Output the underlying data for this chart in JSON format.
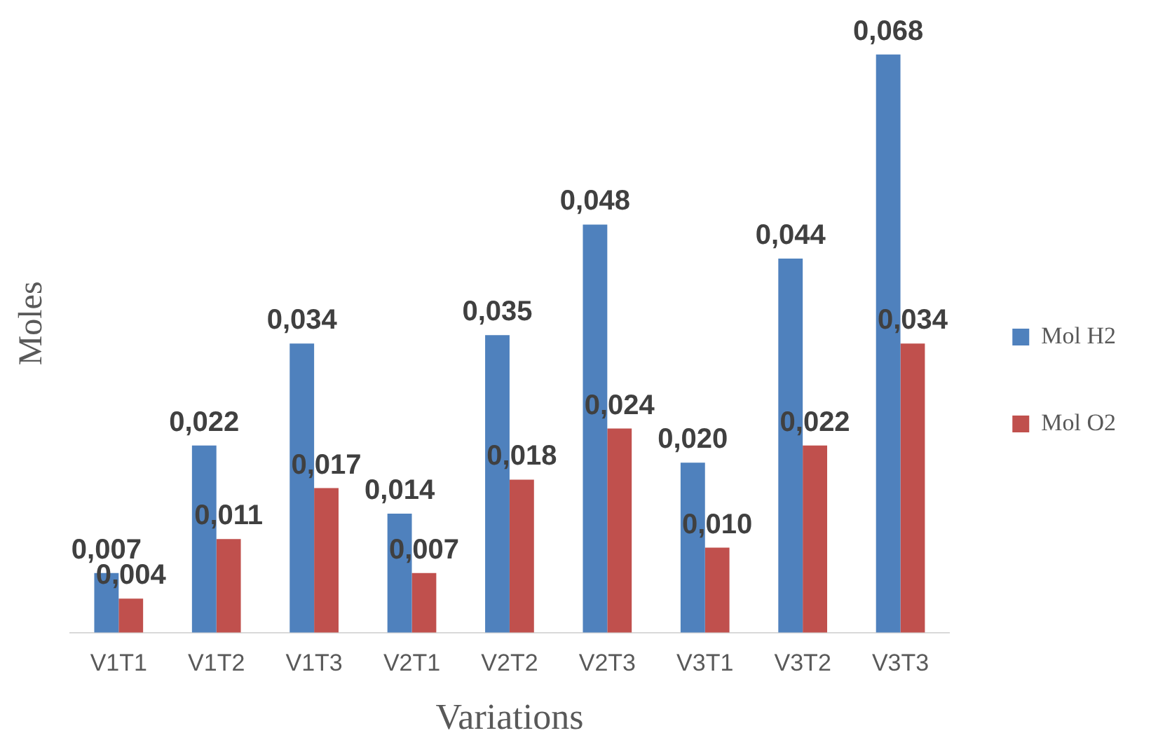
{
  "chart_data": {
    "type": "bar",
    "xlabel": "Variations",
    "ylabel": "Moles",
    "categories": [
      "V1T1",
      "V1T2",
      "V1T3",
      "V2T1",
      "V2T2",
      "V2T3",
      "V3T1",
      "V3T2",
      "V3T3"
    ],
    "series": [
      {
        "name": "Mol H2",
        "color": "#4f81bd",
        "values": [
          0.007,
          0.022,
          0.034,
          0.014,
          0.035,
          0.048,
          0.02,
          0.044,
          0.068
        ],
        "value_labels": [
          "0,007",
          "0,022",
          "0,034",
          "0,014",
          "0,035",
          "0,048",
          "0,020",
          "0,044",
          "0,068"
        ]
      },
      {
        "name": "Mol O2",
        "color": "#c0504d",
        "values": [
          0.004,
          0.011,
          0.017,
          0.007,
          0.018,
          0.024,
          0.01,
          0.022,
          0.034
        ],
        "value_labels": [
          "0,004",
          "0,011",
          "0,017",
          "0,007",
          "0,018",
          "0,024",
          "0,010",
          "0,022",
          "0,034"
        ]
      }
    ],
    "legend": "right",
    "grid": false
  }
}
